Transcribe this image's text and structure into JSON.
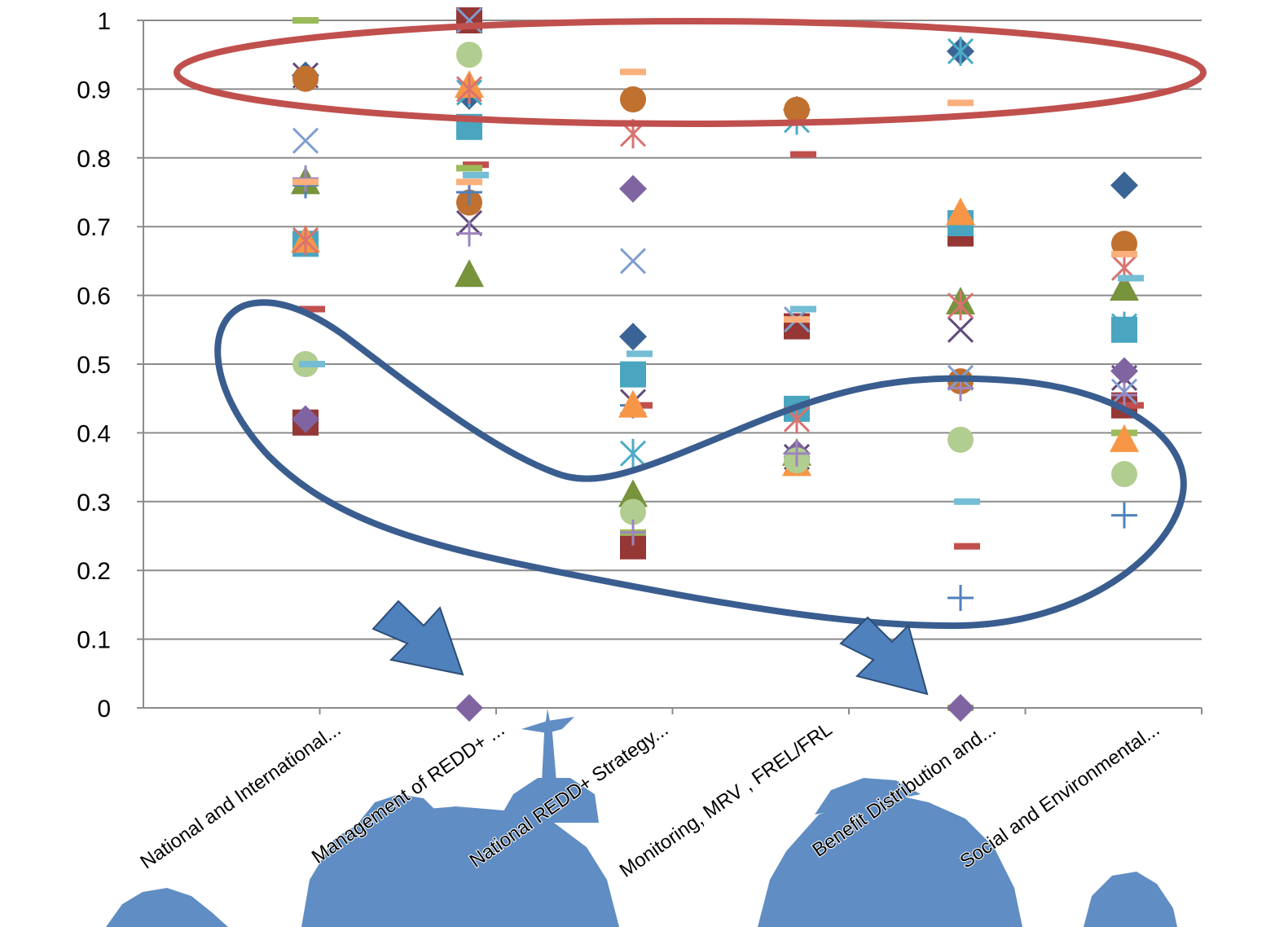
{
  "chart_data": {
    "type": "scatter",
    "title": "",
    "xlabel": "",
    "ylabel": "",
    "ylim": [
      0,
      1
    ],
    "y_ticks": [
      "0",
      "0.1",
      "0.2",
      "0.3",
      "0.4",
      "0.5",
      "0.6",
      "0.7",
      "0.8",
      "0.9",
      "1"
    ],
    "grid": true,
    "legend": "none",
    "categories": [
      "National and International...",
      "Management of REDD+ ...",
      "National REDD+ Strategy...",
      "Monitoring, MRV , FREL/FRL",
      "Benefit Distribution and...",
      "Social and Environmental..."
    ],
    "series": [
      {
        "marker": "diamond",
        "color": "#3b6496",
        "values": [
          0.92,
          0.89,
          0.54,
          0.87,
          0.955,
          0.76
        ]
      },
      {
        "marker": "square",
        "color": "#953735",
        "values": [
          0.415,
          1.0,
          0.235,
          0.555,
          0.69,
          0.44
        ]
      },
      {
        "marker": "triangle",
        "color": "#77933c",
        "values": [
          0.765,
          0.63,
          0.31,
          0.37,
          0.59,
          0.61
        ]
      },
      {
        "marker": "x",
        "color": "#604a7b",
        "values": [
          0.92,
          0.705,
          0.445,
          0.365,
          0.55,
          0.48
        ]
      },
      {
        "marker": "asterisk",
        "color": "#4bacc6",
        "values": [
          0.68,
          0.895,
          0.37,
          0.855,
          0.955,
          0.555
        ]
      },
      {
        "marker": "circle",
        "color": "#c0702f",
        "values": [
          0.915,
          0.735,
          0.885,
          0.87,
          0.475,
          0.675
        ]
      },
      {
        "marker": "plus",
        "color": "#4f81bd",
        "values": [
          0.76,
          0.75,
          0.44,
          0.365,
          0.16,
          0.28
        ]
      },
      {
        "marker": "dash",
        "color": "#c0504d",
        "values": [
          0.58,
          0.79,
          0.44,
          0.805,
          0.235,
          0.44
        ]
      },
      {
        "marker": "dash",
        "color": "#9bbb59",
        "values": [
          1.0,
          0.785,
          0.255,
          0.36,
          0.0,
          0.4
        ]
      },
      {
        "marker": "diamond",
        "color": "#8064a2",
        "values": [
          0.42,
          0.0,
          0.755,
          0.37,
          0.0,
          0.49
        ]
      },
      {
        "marker": "square",
        "color": "#4aa6c0",
        "values": [
          0.675,
          0.845,
          0.485,
          0.435,
          0.705,
          0.55
        ]
      },
      {
        "marker": "triangle",
        "color": "#f79646",
        "values": [
          0.68,
          0.905,
          0.44,
          0.355,
          0.72,
          0.39
        ]
      },
      {
        "marker": "x",
        "color": "#7f9fcf",
        "values": [
          0.825,
          1.0,
          0.65,
          0.565,
          0.48,
          0.46
        ]
      },
      {
        "marker": "asterisk",
        "color": "#d9736f",
        "values": [
          0.68,
          0.9,
          0.835,
          0.42,
          0.585,
          0.64
        ]
      },
      {
        "marker": "circle",
        "color": "#b1cd8f",
        "values": [
          0.5,
          0.95,
          0.285,
          0.36,
          0.39,
          0.34
        ]
      },
      {
        "marker": "plus",
        "color": "#9d85bf",
        "values": [
          0.77,
          0.69,
          0.255,
          0.37,
          0.465,
          0.455
        ]
      },
      {
        "marker": "dash",
        "color": "#fab07c",
        "values": [
          0.765,
          0.765,
          0.925,
          0.565,
          0.88,
          0.66
        ]
      },
      {
        "marker": "dash",
        "color": "#74bdd4",
        "values": [
          0.5,
          0.775,
          0.515,
          0.58,
          0.3,
          0.625
        ]
      }
    ],
    "annotations": [
      {
        "type": "ellipse",
        "color": "#c0504d",
        "note": "highlights high scores around 0.85-1.0"
      },
      {
        "type": "loop",
        "color": "#3a5d8f",
        "note": "highlights low scores"
      },
      {
        "type": "arrow",
        "color": "#4f81bd",
        "note": "points to 0 value at Management of REDD+"
      },
      {
        "type": "arrow",
        "color": "#4f81bd",
        "note": "points to 0 value at Benefit Distribution"
      }
    ]
  }
}
